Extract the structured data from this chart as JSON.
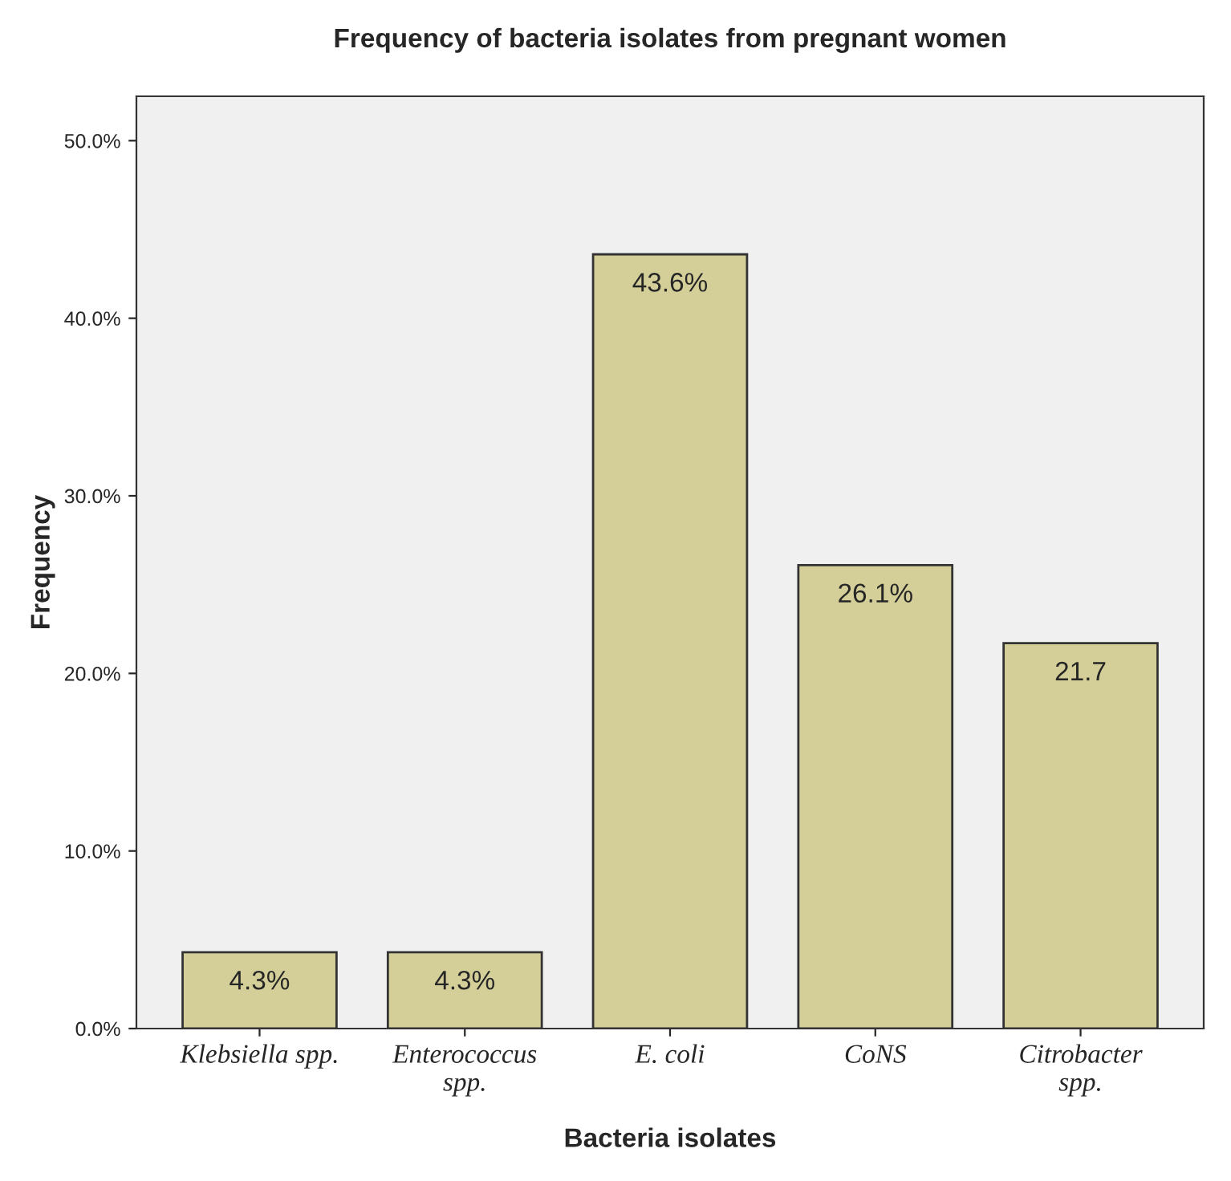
{
  "chart_data": {
    "type": "bar",
    "title": "Frequency of bacteria isolates from pregnant women",
    "xlabel": "Bacteria isolates",
    "ylabel": "Frequency",
    "categories": [
      "Klebsiella spp.",
      "Enterococcus\nspp.",
      "E. coli",
      "CoNS",
      "Citrobacter\nspp."
    ],
    "values": [
      4.3,
      4.3,
      43.6,
      26.1,
      21.7
    ],
    "value_labels": [
      "4.3%",
      "4.3%",
      "43.6%",
      "26.1%",
      "21.7"
    ],
    "color": "#d4cf99",
    "ylim": [
      0,
      52.5
    ],
    "yticks": [
      {
        "value": 0,
        "label": "0.0%"
      },
      {
        "value": 10,
        "label": "10.0%"
      },
      {
        "value": 20,
        "label": "20.0%"
      },
      {
        "value": 30,
        "label": "30.0%"
      },
      {
        "value": 40,
        "label": "40.0%"
      },
      {
        "value": 50,
        "label": "50.0%"
      }
    ],
    "grid": false
  }
}
